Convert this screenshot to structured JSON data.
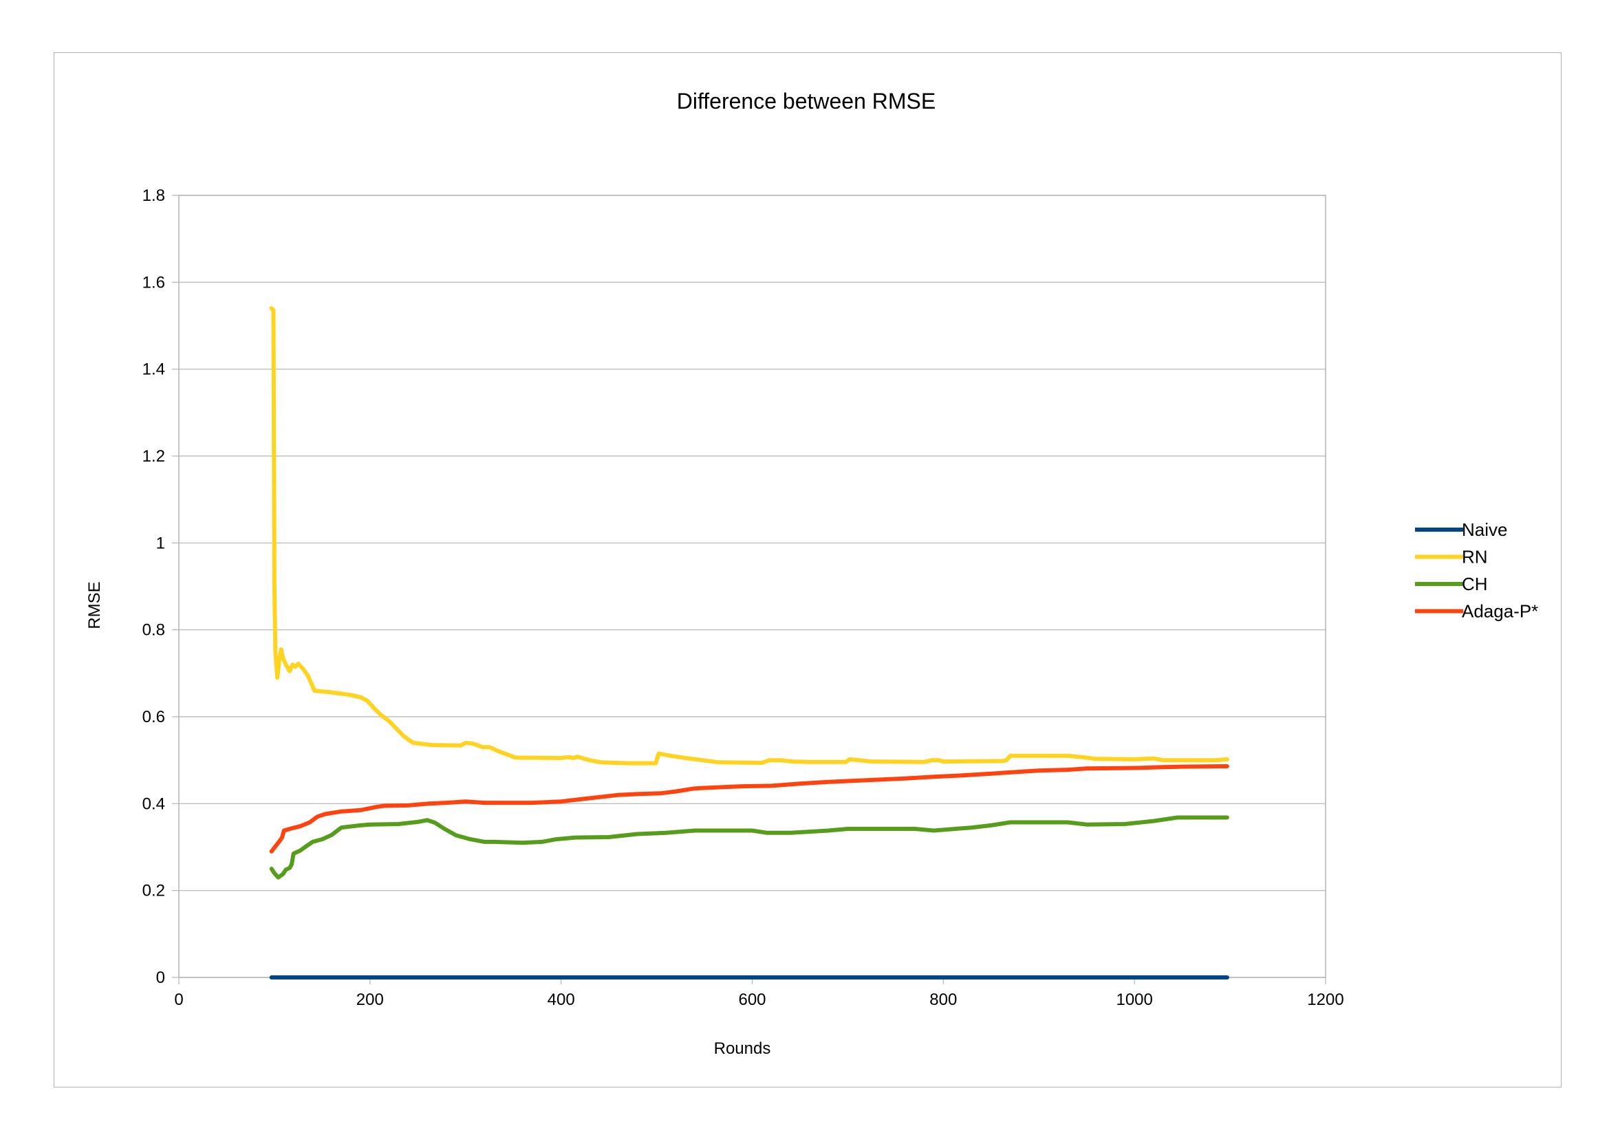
{
  "chart_data": {
    "type": "line",
    "title": "Difference between RMSE",
    "xlabel": "Rounds",
    "ylabel": "RMSE",
    "xlim": [
      0,
      1200
    ],
    "ylim": [
      0,
      1.8
    ],
    "xticks": [
      0,
      200,
      400,
      600,
      800,
      1000,
      1200
    ],
    "yticks": [
      0,
      0.2,
      0.4,
      0.6,
      0.8,
      1,
      1.2,
      1.4,
      1.6,
      1.8
    ],
    "xtick_labels": [
      "0",
      "200",
      "400",
      "600",
      "800",
      "1000",
      "1200"
    ],
    "ytick_labels": [
      "0",
      "0.2",
      "0.4",
      "0.6",
      "0.8",
      "1",
      "1.2",
      "1.4",
      "1.6",
      "1.8"
    ],
    "grid": true,
    "legend_position": "right",
    "series": [
      {
        "name": "Naive",
        "color": "#004586",
        "points": [
          [
            97,
            0.0
          ],
          [
            1097,
            0.0
          ]
        ]
      },
      {
        "name": "RN",
        "color": "#ffd320",
        "points": [
          [
            97,
            1.54
          ],
          [
            99,
            1.535
          ],
          [
            100,
            0.9
          ],
          [
            101,
            0.75
          ],
          [
            103,
            0.69
          ],
          [
            105,
            0.73
          ],
          [
            107,
            0.755
          ],
          [
            109,
            0.735
          ],
          [
            112,
            0.72
          ],
          [
            116,
            0.705
          ],
          [
            119,
            0.72
          ],
          [
            122,
            0.715
          ],
          [
            125,
            0.722
          ],
          [
            130,
            0.71
          ],
          [
            135,
            0.695
          ],
          [
            142,
            0.66
          ],
          [
            160,
            0.656
          ],
          [
            180,
            0.65
          ],
          [
            190,
            0.645
          ],
          [
            197,
            0.637
          ],
          [
            205,
            0.618
          ],
          [
            212,
            0.603
          ],
          [
            220,
            0.59
          ],
          [
            228,
            0.572
          ],
          [
            235,
            0.556
          ],
          [
            245,
            0.54
          ],
          [
            265,
            0.535
          ],
          [
            295,
            0.534
          ],
          [
            300,
            0.54
          ],
          [
            308,
            0.538
          ],
          [
            318,
            0.53
          ],
          [
            325,
            0.53
          ],
          [
            335,
            0.52
          ],
          [
            345,
            0.512
          ],
          [
            352,
            0.506
          ],
          [
            400,
            0.505
          ],
          [
            408,
            0.507
          ],
          [
            413,
            0.505
          ],
          [
            417,
            0.508
          ],
          [
            430,
            0.5
          ],
          [
            442,
            0.495
          ],
          [
            470,
            0.493
          ],
          [
            499,
            0.493
          ],
          [
            502,
            0.515
          ],
          [
            515,
            0.51
          ],
          [
            530,
            0.505
          ],
          [
            548,
            0.5
          ],
          [
            565,
            0.495
          ],
          [
            610,
            0.494
          ],
          [
            618,
            0.5
          ],
          [
            630,
            0.5
          ],
          [
            642,
            0.497
          ],
          [
            660,
            0.496
          ],
          [
            698,
            0.496
          ],
          [
            702,
            0.502
          ],
          [
            712,
            0.5
          ],
          [
            725,
            0.497
          ],
          [
            780,
            0.496
          ],
          [
            788,
            0.5
          ],
          [
            795,
            0.5
          ],
          [
            800,
            0.497
          ],
          [
            862,
            0.498
          ],
          [
            866,
            0.5
          ],
          [
            870,
            0.51
          ],
          [
            930,
            0.51
          ],
          [
            945,
            0.507
          ],
          [
            960,
            0.503
          ],
          [
            1000,
            0.502
          ],
          [
            1020,
            0.504
          ],
          [
            1030,
            0.5
          ],
          [
            1085,
            0.5
          ],
          [
            1097,
            0.502
          ]
        ]
      },
      {
        "name": "CH",
        "color": "#579d1c",
        "points": [
          [
            97,
            0.25
          ],
          [
            100,
            0.24
          ],
          [
            104,
            0.23
          ],
          [
            109,
            0.238
          ],
          [
            112,
            0.248
          ],
          [
            116,
            0.252
          ],
          [
            118,
            0.26
          ],
          [
            120,
            0.285
          ],
          [
            127,
            0.292
          ],
          [
            132,
            0.3
          ],
          [
            140,
            0.312
          ],
          [
            150,
            0.318
          ],
          [
            160,
            0.328
          ],
          [
            170,
            0.345
          ],
          [
            190,
            0.35
          ],
          [
            200,
            0.352
          ],
          [
            230,
            0.353
          ],
          [
            250,
            0.358
          ],
          [
            260,
            0.362
          ],
          [
            268,
            0.356
          ],
          [
            278,
            0.342
          ],
          [
            290,
            0.327
          ],
          [
            305,
            0.318
          ],
          [
            320,
            0.312
          ],
          [
            330,
            0.312
          ],
          [
            360,
            0.31
          ],
          [
            380,
            0.312
          ],
          [
            395,
            0.318
          ],
          [
            415,
            0.322
          ],
          [
            450,
            0.323
          ],
          [
            480,
            0.33
          ],
          [
            510,
            0.333
          ],
          [
            540,
            0.338
          ],
          [
            600,
            0.338
          ],
          [
            615,
            0.333
          ],
          [
            640,
            0.333
          ],
          [
            680,
            0.338
          ],
          [
            700,
            0.342
          ],
          [
            770,
            0.342
          ],
          [
            790,
            0.338
          ],
          [
            830,
            0.345
          ],
          [
            850,
            0.35
          ],
          [
            870,
            0.357
          ],
          [
            930,
            0.357
          ],
          [
            950,
            0.352
          ],
          [
            990,
            0.353
          ],
          [
            1020,
            0.36
          ],
          [
            1045,
            0.368
          ],
          [
            1097,
            0.368
          ]
        ]
      },
      {
        "name": "Adaga-P*",
        "color": "#ff420e",
        "points": [
          [
            97,
            0.29
          ],
          [
            104,
            0.31
          ],
          [
            108,
            0.322
          ],
          [
            110,
            0.338
          ],
          [
            118,
            0.343
          ],
          [
            127,
            0.348
          ],
          [
            137,
            0.357
          ],
          [
            145,
            0.37
          ],
          [
            153,
            0.376
          ],
          [
            170,
            0.382
          ],
          [
            190,
            0.385
          ],
          [
            208,
            0.393
          ],
          [
            215,
            0.395
          ],
          [
            240,
            0.396
          ],
          [
            262,
            0.4
          ],
          [
            280,
            0.402
          ],
          [
            300,
            0.405
          ],
          [
            320,
            0.402
          ],
          [
            370,
            0.402
          ],
          [
            400,
            0.405
          ],
          [
            420,
            0.41
          ],
          [
            440,
            0.415
          ],
          [
            460,
            0.42
          ],
          [
            480,
            0.422
          ],
          [
            505,
            0.424
          ],
          [
            520,
            0.428
          ],
          [
            540,
            0.435
          ],
          [
            570,
            0.438
          ],
          [
            590,
            0.44
          ],
          [
            620,
            0.441
          ],
          [
            650,
            0.446
          ],
          [
            680,
            0.45
          ],
          [
            710,
            0.453
          ],
          [
            730,
            0.455
          ],
          [
            760,
            0.458
          ],
          [
            790,
            0.462
          ],
          [
            820,
            0.465
          ],
          [
            850,
            0.469
          ],
          [
            870,
            0.472
          ],
          [
            900,
            0.476
          ],
          [
            930,
            0.478
          ],
          [
            950,
            0.481
          ],
          [
            1000,
            0.482
          ],
          [
            1030,
            0.484
          ],
          [
            1050,
            0.485
          ],
          [
            1097,
            0.486
          ]
        ]
      }
    ]
  }
}
